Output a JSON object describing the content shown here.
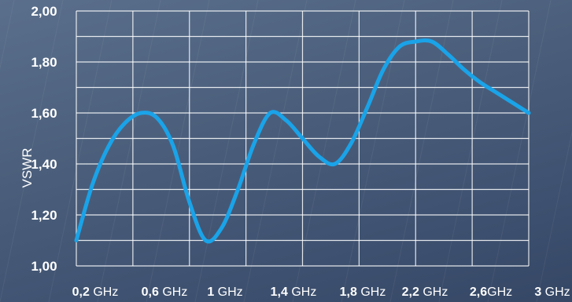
{
  "chart_data": {
    "type": "line",
    "ylabel": "VSWR",
    "xlabel": "",
    "y_tick_labels": [
      "2,00",
      "1,80",
      "1,60",
      "1,40",
      "1,20",
      "1,00"
    ],
    "x_tick_labels": [
      {
        "num": "0,2",
        "unit": " GHz"
      },
      {
        "num": "0,6",
        "unit": " GHz"
      },
      {
        "num": "1",
        "unit": " GHz"
      },
      {
        "num": "1,4",
        "unit": " GHz"
      },
      {
        "num": "1,8",
        "unit": " GHz"
      },
      {
        "num": "2,2",
        "unit": " GHz"
      },
      {
        "num": "2,6",
        "unit": "GHz"
      },
      {
        "num": "3",
        "unit": " GHz"
      }
    ],
    "ylim": [
      1.0,
      2.0
    ],
    "xlim": [
      0.2,
      3.0
    ],
    "grid": true,
    "series": [
      {
        "x": [
          0.2,
          0.3,
          0.4,
          0.5,
          0.6,
          0.7,
          0.8,
          0.9,
          1.0,
          1.1,
          1.2,
          1.3,
          1.4,
          1.5,
          1.6,
          1.7,
          1.8,
          1.9,
          2.0,
          2.1,
          2.2,
          2.3,
          2.4,
          2.5,
          2.6,
          2.7,
          2.8,
          2.9,
          3.0
        ],
        "values": [
          1.1,
          1.32,
          1.47,
          1.56,
          1.6,
          1.58,
          1.47,
          1.25,
          1.1,
          1.15,
          1.3,
          1.48,
          1.6,
          1.57,
          1.5,
          1.43,
          1.4,
          1.48,
          1.62,
          1.77,
          1.86,
          1.88,
          1.88,
          1.83,
          1.77,
          1.72,
          1.68,
          1.64,
          1.6
        ]
      }
    ],
    "colors": {
      "line": "#1aa3e8",
      "grid": "#ffffff",
      "text": "#ffffff"
    }
  }
}
